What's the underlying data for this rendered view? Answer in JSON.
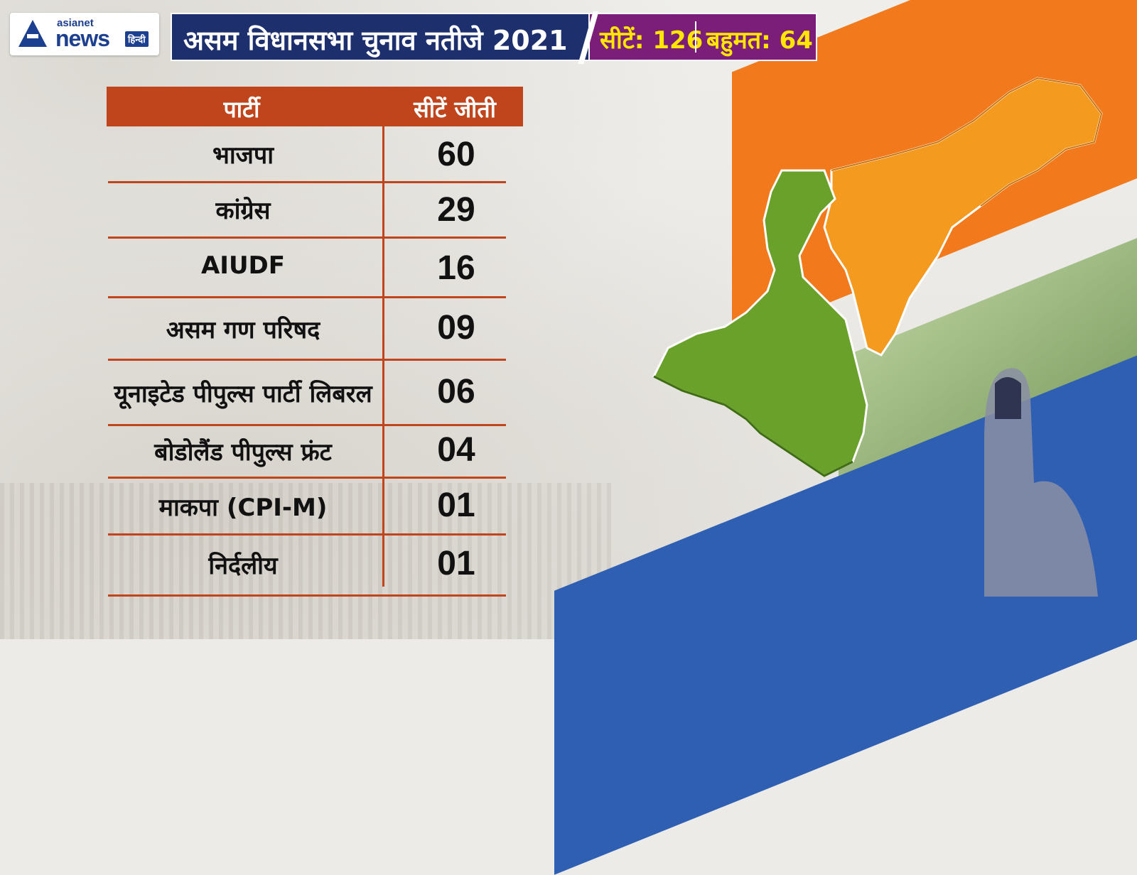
{
  "logo": {
    "brand_top": "asianet",
    "brand_main": "news",
    "brand_lang": "हिन्दी"
  },
  "header": {
    "title": "असम विधानसभा चुनाव नतीजे 2021",
    "seats_text": "सीटें: 126",
    "majority_text": "बहुमत: 64"
  },
  "table": {
    "headers": {
      "party": "पार्टी",
      "seats": "सीटें जीती"
    },
    "rows": [
      {
        "party": "भाजपा",
        "seats": "60"
      },
      {
        "party": "कांग्रेस",
        "seats": "29"
      },
      {
        "party": "AIUDF",
        "seats": "16"
      },
      {
        "party": "असम गण परिषद",
        "seats": "09"
      },
      {
        "party": "यूनाइटेड पीपुल्स पार्टी लिबरल",
        "seats": "06"
      },
      {
        "party": "बोडोलैंड पीपुल्स फ्रंट",
        "seats": "04"
      },
      {
        "party": "माकपा (CPI-M)",
        "seats": "01"
      },
      {
        "party": "निर्दलीय",
        "seats": "01"
      }
    ]
  },
  "colors": {
    "title_bg": "#1e2f6e",
    "seat_bg": "#7b1e7a",
    "seat_text": "#ffe600",
    "table_accent": "#c0451c",
    "assam_map": "#f39a1f",
    "bengal_map": "#6aa12a"
  }
}
